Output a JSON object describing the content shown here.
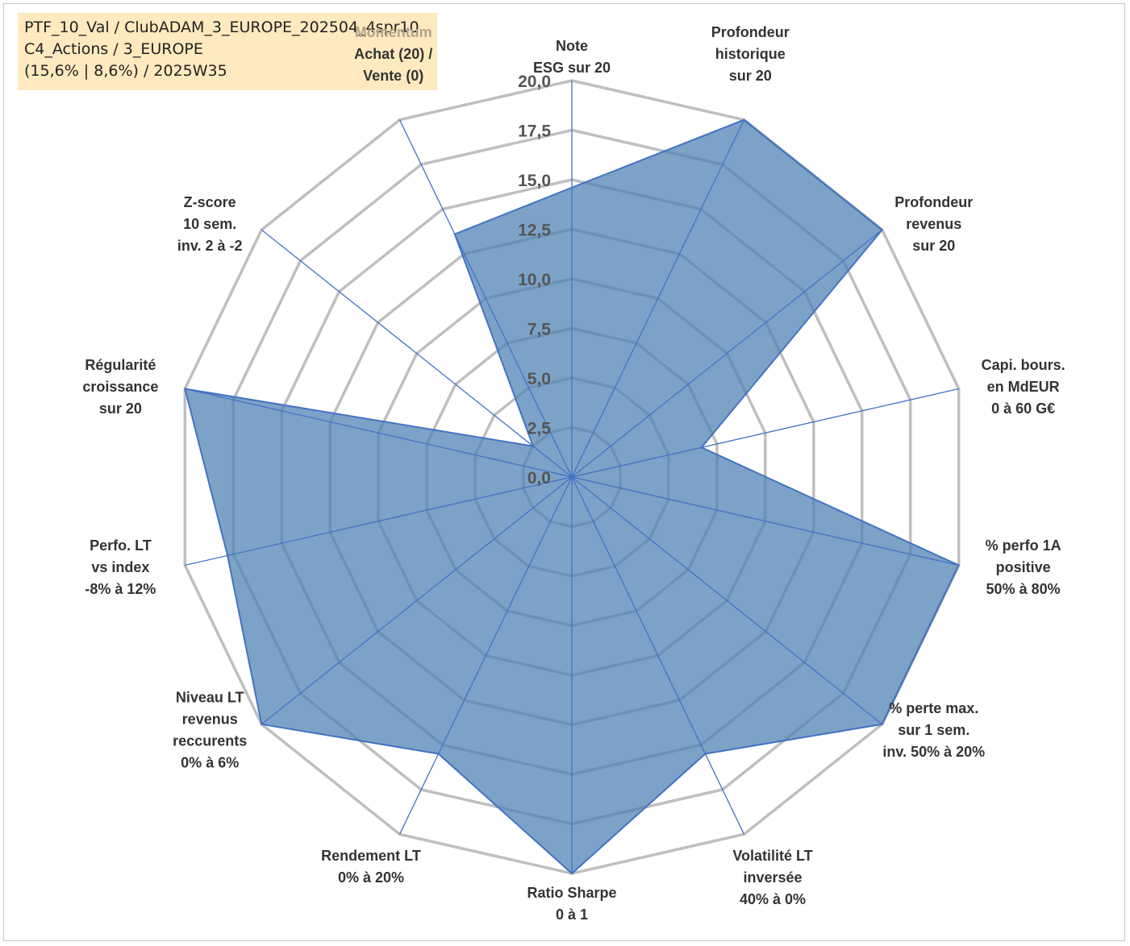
{
  "info_box": {
    "line1": "PTF_10_Val / ClubADAM_3_EUROPE_202504_4spr10",
    "line2": "C4_Actions / 3_EUROPE",
    "line3": "(15,6% | 8,6%) / 2025W35"
  },
  "chart_data": {
    "type": "radar",
    "title": "",
    "rmin": 0,
    "rmax": 20,
    "ticks": [
      "0,0",
      "2,5",
      "5,0",
      "7,5",
      "10,0",
      "12,5",
      "15,0",
      "17,5",
      "20,0"
    ],
    "tick_values": [
      0,
      2.5,
      5,
      7.5,
      10,
      12.5,
      15,
      17.5,
      20
    ],
    "grid_color": "#bfbfbf",
    "axis_color": "#4472c4",
    "fill_color": "#4f81b4",
    "axes": [
      {
        "lines": [
          "Note",
          "ESG sur 20"
        ],
        "value": 14.6
      },
      {
        "lines": [
          "Profondeur",
          "historique",
          "sur 20"
        ],
        "value": 20
      },
      {
        "lines": [
          "Profondeur",
          "revenus",
          "sur 20"
        ],
        "value": 20
      },
      {
        "lines": [
          "Capi. bours.",
          "en MdEUR",
          "0 à 60 G€"
        ],
        "value": 6.7
      },
      {
        "lines": [
          "% perfo 1A",
          "positive",
          "50% à 80%"
        ],
        "value": 20
      },
      {
        "lines": [
          "% perte max.",
          "sur 1 sem.",
          "inv. 50% à 20%"
        ],
        "value": 20
      },
      {
        "lines": [
          "Volatilité LT",
          "inversée",
          "40% à 0%"
        ],
        "value": 15.5
      },
      {
        "lines": [
          "Ratio Sharpe",
          "0 à 1"
        ],
        "value": 20
      },
      {
        "lines": [
          "Rendement LT",
          "0% à 20%"
        ],
        "value": 15.5
      },
      {
        "lines": [
          "Niveau LT",
          "revenus",
          "reccurents",
          "0% à 6%"
        ],
        "value": 20
      },
      {
        "lines": [
          "Perfo. LT",
          "vs index",
          "-8% à 12%"
        ],
        "value": 17.8
      },
      {
        "lines": [
          "Régularité",
          "croissance",
          "sur 20"
        ],
        "value": 20
      },
      {
        "lines": [
          "Z-score",
          "10 sem.",
          "inv. 2 à -2"
        ],
        "value": 2.5
      },
      {
        "lines": [
          "Momentum",
          "Achat (20) /",
          "Vente (0)"
        ],
        "value": 13.6
      }
    ]
  }
}
